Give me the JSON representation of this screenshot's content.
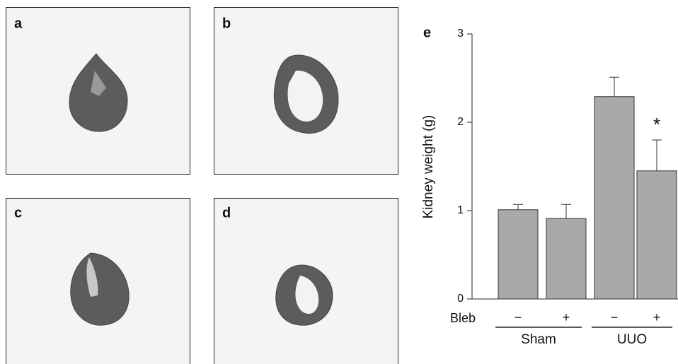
{
  "panels": [
    {
      "label": "a"
    },
    {
      "label": "b"
    },
    {
      "label": "c"
    },
    {
      "label": "d"
    }
  ],
  "chart_data": {
    "type": "bar",
    "panel_label": "e",
    "ylabel": "Kidney weight (g)",
    "row_label": "Bleb",
    "categories": [
      "−",
      "+",
      "−",
      "+"
    ],
    "groups": [
      {
        "label": "Sham"
      },
      {
        "label": "UUO"
      }
    ],
    "values": [
      1.01,
      0.91,
      2.29,
      1.45
    ],
    "errors": [
      0.06,
      0.16,
      0.22,
      0.35
    ],
    "significance": [
      null,
      null,
      null,
      "*"
    ],
    "color": "#a9a9a9",
    "ylim": [
      0,
      3
    ],
    "yticks": [
      0,
      1,
      2,
      3
    ]
  }
}
